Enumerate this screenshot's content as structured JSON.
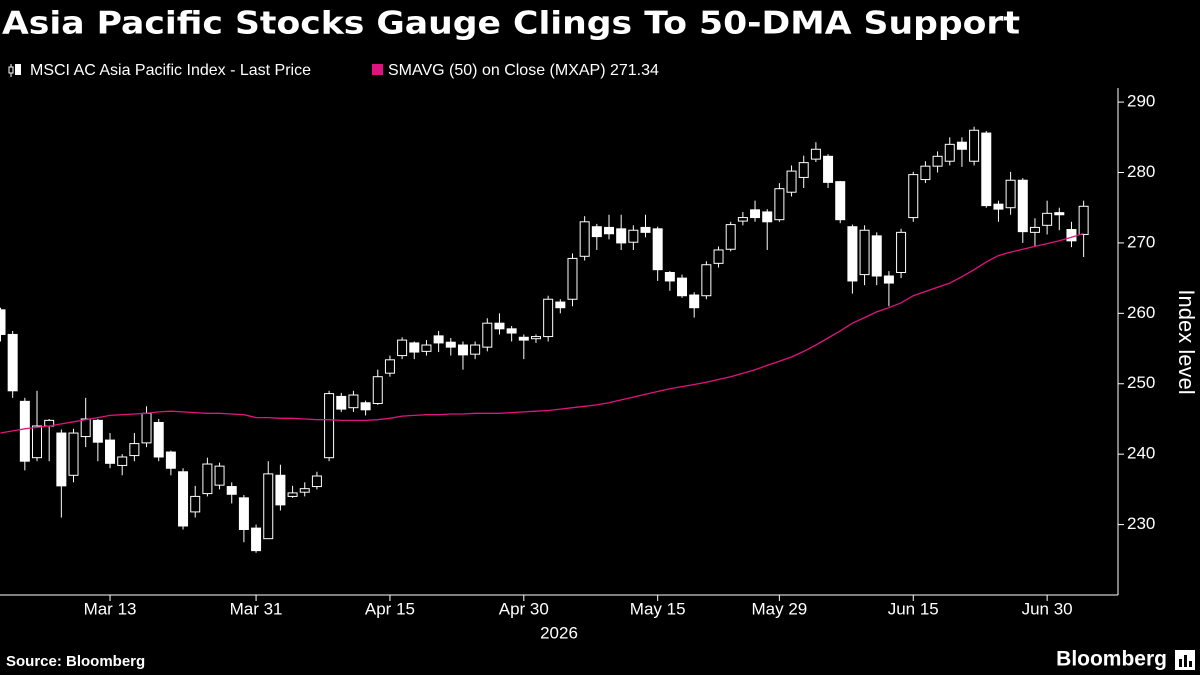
{
  "chart_data": {
    "type": "candlestick",
    "title": "Asia Pacific Stocks Gauge Clings To 50-DMA Support",
    "ylabel": "Index level",
    "x_sublabel": "2026",
    "source": "Source: Bloomberg",
    "brand": "Bloomberg",
    "categories": [
      null,
      null,
      null,
      null,
      null,
      null,
      null,
      null,
      null,
      "Mar 13",
      null,
      null,
      null,
      null,
      null,
      null,
      null,
      null,
      null,
      null,
      null,
      "Mar 31",
      null,
      null,
      null,
      null,
      null,
      null,
      null,
      null,
      null,
      null,
      "Apr 15",
      null,
      null,
      null,
      null,
      null,
      null,
      null,
      null,
      null,
      null,
      "Apr 30",
      null,
      null,
      null,
      null,
      null,
      null,
      null,
      null,
      null,
      null,
      "May 15",
      null,
      null,
      null,
      null,
      null,
      null,
      null,
      null,
      null,
      "May 29",
      null,
      null,
      null,
      null,
      null,
      null,
      null,
      null,
      null,
      null,
      "Jun 15",
      null,
      null,
      null,
      null,
      null,
      null,
      null,
      null,
      null,
      null,
      "Jun 30",
      null,
      null,
      null
    ],
    "ylim": [
      220,
      292
    ],
    "yticks": [
      230,
      240,
      250,
      260,
      270,
      280,
      290
    ],
    "series": [
      {
        "name": "MSCI AC Asia Pacific Index - Last Price",
        "color": "#ffffff",
        "open": [
          260.5,
          257,
          247.5,
          239.5,
          244,
          243,
          237,
          242.5,
          244.8,
          242,
          238.4,
          239.8,
          241.6,
          244.5,
          240.3,
          237.5,
          231.8,
          234.4,
          235.6,
          235.4,
          233.8,
          229.5,
          228,
          237,
          234,
          234.6,
          235.4,
          239.5,
          248.2,
          246.6,
          247.3,
          247.2,
          251.5,
          254,
          255.8,
          254.6,
          256.8,
          255.9,
          255.5,
          254.2,
          255.2,
          258.6,
          257.8,
          256.6,
          256.4,
          256.7,
          261.6,
          262,
          268.1,
          272.3,
          272.2,
          272,
          270.1,
          272.2,
          272,
          265.8,
          265,
          262.6,
          262.5,
          267.1,
          269.1,
          273.1,
          274.7,
          274.4,
          273.3,
          277.2,
          279.3,
          281.9,
          282.3,
          278.7,
          272.3,
          265.5,
          271,
          265.3,
          265.8,
          273.6,
          279,
          280.9,
          281.6,
          284.3,
          281.6,
          285.6,
          275.5,
          275,
          278.9,
          271.5,
          272.5,
          274.3,
          271.9,
          271.2
        ],
        "high": [
          260.8,
          257.5,
          248,
          249,
          245,
          243.5,
          243.6,
          248,
          245,
          243,
          240,
          243,
          246.8,
          245,
          240.5,
          238,
          235.5,
          239.5,
          238.8,
          236,
          234.2,
          230,
          239,
          238.5,
          235.5,
          236,
          237.5,
          249,
          248.7,
          249,
          247.6,
          252,
          254,
          256.6,
          256,
          256.2,
          257.5,
          256.5,
          256,
          256,
          259.3,
          260,
          258.2,
          257,
          257,
          262.5,
          262,
          268.5,
          273.8,
          272.7,
          274,
          274,
          272.5,
          274,
          272.3,
          266,
          265.5,
          263,
          267.4,
          269.5,
          273,
          274.4,
          276,
          274.8,
          278.5,
          281,
          282.4,
          284.3,
          282.6,
          278.8,
          272.6,
          272.5,
          271.5,
          266,
          272,
          280.1,
          281.6,
          283,
          285,
          285,
          286.5,
          285.9,
          276,
          280.1,
          279.2,
          273.5,
          276,
          275,
          273,
          276
        ],
        "low": [
          256,
          248,
          237.7,
          239,
          239,
          231,
          236,
          241,
          239,
          238,
          237,
          239,
          241,
          239,
          237,
          229.3,
          231,
          234,
          235,
          233,
          227.5,
          226,
          228,
          232,
          233.8,
          234,
          235,
          239,
          246,
          246,
          245.5,
          247,
          251,
          253.5,
          253.5,
          254,
          254.5,
          254,
          252,
          253.5,
          254.6,
          257,
          256,
          253.5,
          255.8,
          256,
          260,
          261,
          267.5,
          269,
          270.5,
          269,
          269,
          270.8,
          264.6,
          263.2,
          262.2,
          259.4,
          262,
          266.5,
          268.8,
          272.5,
          273,
          269,
          273,
          276.6,
          277.8,
          281.5,
          277.8,
          272.8,
          262.8,
          264,
          264,
          261,
          265,
          273,
          278.5,
          280,
          281,
          280.8,
          281,
          275,
          273,
          274,
          270,
          269.5,
          271.2,
          271.8,
          269.4,
          268
        ],
        "close": [
          257,
          249,
          239,
          244,
          244.8,
          235.5,
          243,
          245,
          241.7,
          238.7,
          239.6,
          241.5,
          245.8,
          239.6,
          238,
          229.8,
          234,
          238.6,
          238.3,
          234.3,
          229.3,
          226.3,
          237.2,
          232.8,
          234.5,
          235.1,
          236.9,
          248.6,
          246.4,
          248.4,
          246.3,
          251,
          253.4,
          256.2,
          254.5,
          255.5,
          255.8,
          255.2,
          254.1,
          255.5,
          258.6,
          257.8,
          257.2,
          256.2,
          256.7,
          262,
          260.8,
          267.8,
          273,
          270.9,
          271.3,
          270,
          271.8,
          271.5,
          266.2,
          264.6,
          262.5,
          260.8,
          266.9,
          269,
          272.6,
          273.6,
          273.6,
          273,
          277.7,
          280.2,
          281.4,
          283.3,
          278.6,
          273.3,
          264.6,
          271.8,
          265.3,
          264.3,
          271.5,
          279.7,
          280.9,
          282.3,
          284,
          283.3,
          286,
          275.3,
          274.8,
          278.9,
          271.6,
          272.2,
          274.2,
          274,
          270.3,
          275.2
        ]
      },
      {
        "name": "SMAVG (50)  on Close (MXAP) 271.34",
        "color": "#e0147f",
        "type": "line",
        "values": [
          243.0,
          243.3,
          243.6,
          243.8,
          244.0,
          244.3,
          244.6,
          244.9,
          245.2,
          245.5,
          245.6,
          245.7,
          245.8,
          246.0,
          246.1,
          246.0,
          245.9,
          245.8,
          245.8,
          245.7,
          245.6,
          245.2,
          245.2,
          245.1,
          245.1,
          245.0,
          244.9,
          244.9,
          244.8,
          244.8,
          244.8,
          244.9,
          245.1,
          245.4,
          245.5,
          245.6,
          245.6,
          245.7,
          245.7,
          245.8,
          245.8,
          245.8,
          245.9,
          246.0,
          246.1,
          246.2,
          246.4,
          246.6,
          246.8,
          247.0,
          247.3,
          247.7,
          248.1,
          248.5,
          248.9,
          249.3,
          249.6,
          249.9,
          250.2,
          250.6,
          251.0,
          251.5,
          252.0,
          252.6,
          253.2,
          253.8,
          254.6,
          255.5,
          256.5,
          257.5,
          258.6,
          259.4,
          260.2,
          260.8,
          261.5,
          262.5,
          263.1,
          263.7,
          264.3,
          265.2,
          266.2,
          267.3,
          268.2,
          268.7,
          269.1,
          269.5,
          269.9,
          270.3,
          270.8,
          271.34
        ]
      }
    ]
  }
}
